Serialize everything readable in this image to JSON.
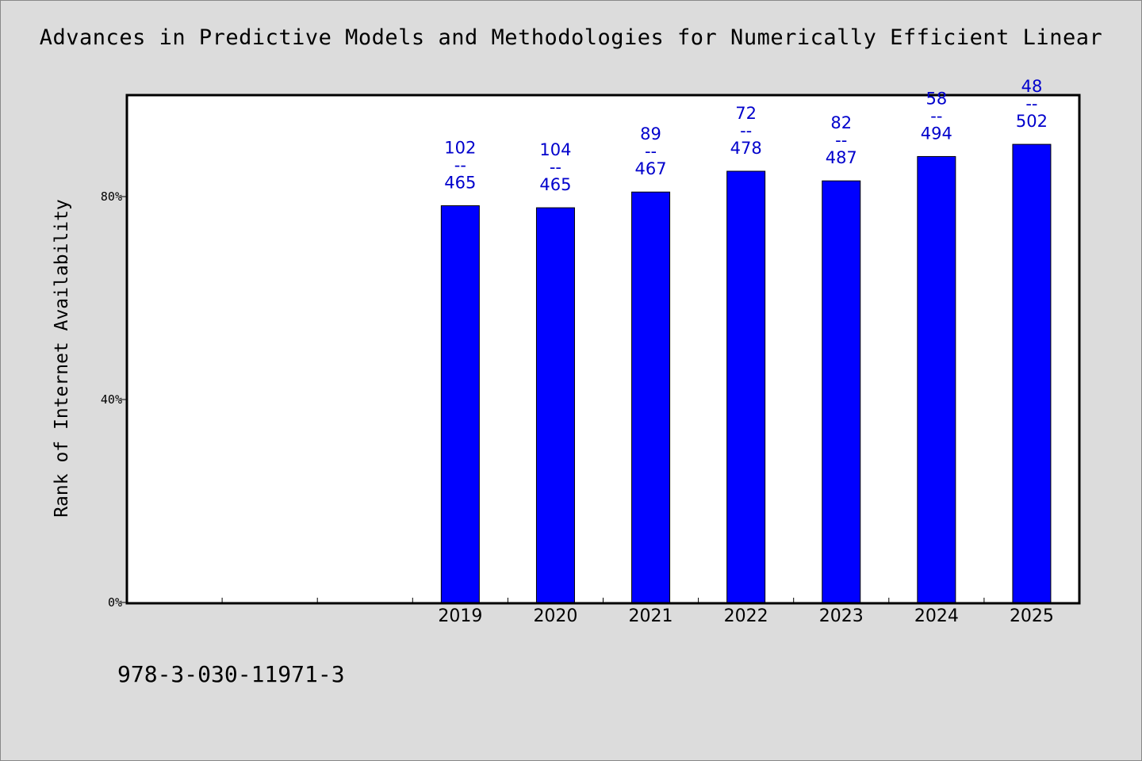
{
  "chart_data": {
    "type": "bar",
    "title": "Advances in Predictive Models and Methodologies for Numerically Efficient Linear",
    "ylabel": "Rank of Internet Availability",
    "xlabel": "",
    "categories": [
      "",
      "",
      "",
      "2019",
      "2020",
      "2021",
      "2022",
      "2023",
      "2024",
      "2025"
    ],
    "values": [
      null,
      null,
      null,
      78.2,
      77.8,
      80.9,
      85.0,
      83.1,
      87.9,
      90.3
    ],
    "data_labels": [
      null,
      null,
      null,
      [
        "102",
        "--",
        "465"
      ],
      [
        "104",
        "--",
        "465"
      ],
      [
        "89",
        "--",
        "467"
      ],
      [
        "72",
        "--",
        "478"
      ],
      [
        "82",
        "--",
        "487"
      ],
      [
        "58",
        "--",
        "494"
      ],
      [
        "48",
        "--",
        "502"
      ]
    ],
    "y_ticks": [
      0,
      40,
      80
    ],
    "y_tick_labels": [
      "0%",
      "40%",
      "80%"
    ],
    "ylim": [
      0,
      100
    ],
    "grid": false,
    "legend": "none",
    "bar_color": "#0000ff",
    "label_color": "#0000cc"
  },
  "footer_text": "978-3-030-11971-3"
}
